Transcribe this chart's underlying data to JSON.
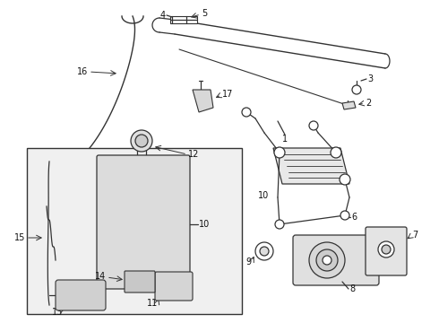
{
  "bg_color": "#ffffff",
  "line_color": "#333333",
  "box_bg": "#f0f0f0",
  "fig_w": 4.9,
  "fig_h": 3.6,
  "dpi": 100
}
